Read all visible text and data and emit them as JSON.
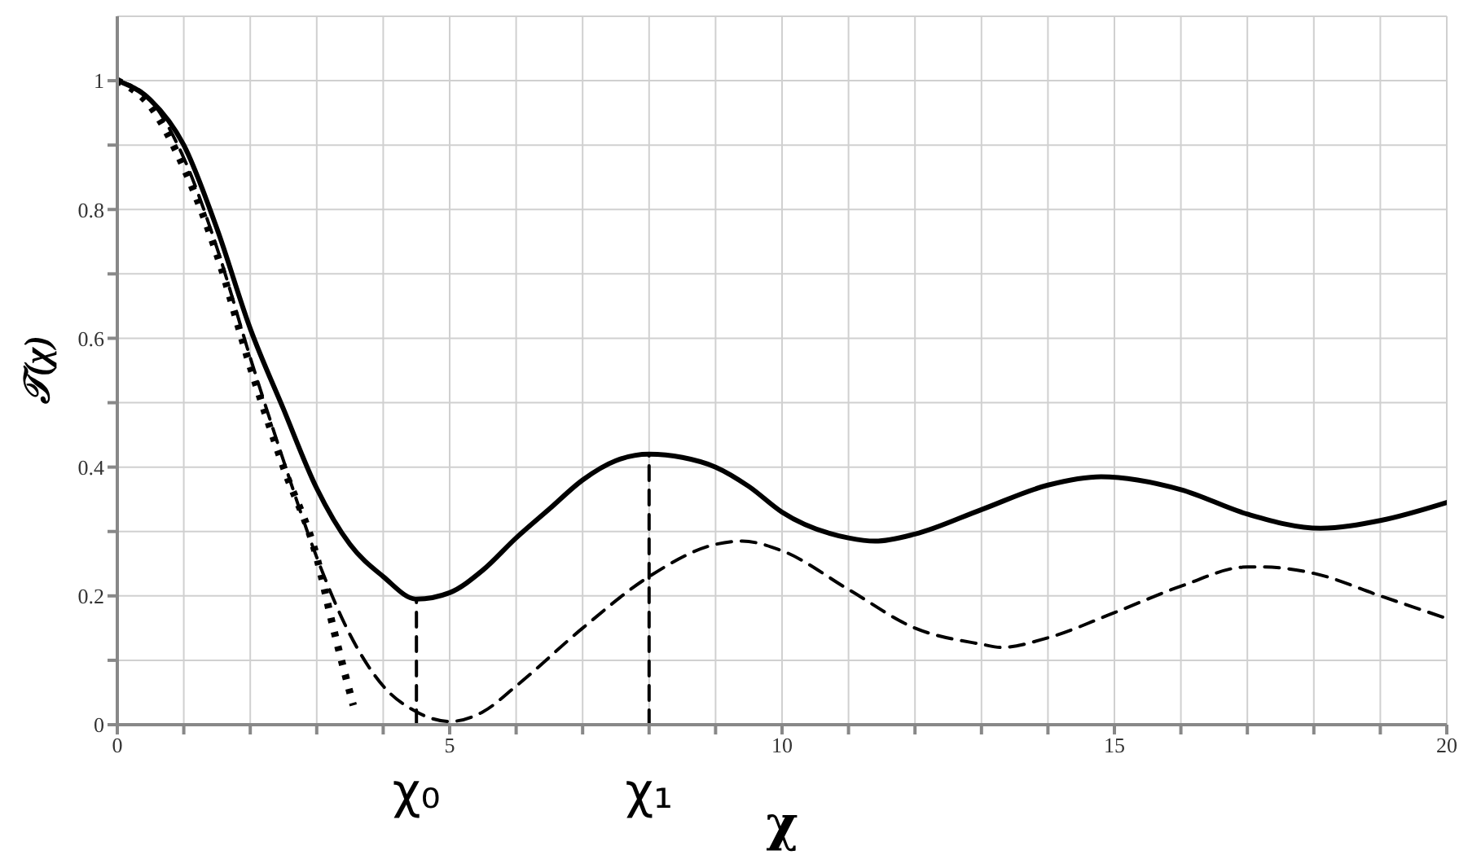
{
  "chart_data": {
    "type": "line",
    "xlabel": "χ",
    "ylabel": "𝒯(χ)",
    "xlim": [
      0,
      20
    ],
    "ylim": [
      0,
      1.1
    ],
    "xticks": [
      0,
      {
        "value": 1,
        "label": null
      },
      {
        "value": 2,
        "label": null
      },
      {
        "value": 3,
        "label": null
      },
      {
        "value": 4,
        "label": null
      },
      5,
      {
        "value": 6,
        "label": null
      },
      {
        "value": 7,
        "label": null
      },
      {
        "value": 8,
        "label": null
      },
      {
        "value": 9,
        "label": null
      },
      10,
      {
        "value": 11,
        "label": null
      },
      {
        "value": 12,
        "label": null
      },
      {
        "value": 13,
        "label": null
      },
      {
        "value": 14,
        "label": null
      },
      15,
      {
        "value": 16,
        "label": null
      },
      {
        "value": 17,
        "label": null
      },
      {
        "value": 18,
        "label": null
      },
      {
        "value": 19,
        "label": null
      },
      20
    ],
    "yticks": [
      0,
      {
        "value": 0.1,
        "label": null
      },
      0.2,
      {
        "value": 0.3,
        "label": null
      },
      0.4,
      {
        "value": 0.5,
        "label": null
      },
      0.6,
      {
        "value": 0.7,
        "label": null
      },
      0.8,
      {
        "value": 0.9,
        "label": null
      },
      1
    ],
    "grid": true,
    "marker": "none",
    "series": [
      {
        "color": "#000000",
        "line_style": "solid",
        "x": [
          0,
          0.5,
          1,
          1.5,
          2,
          2.5,
          3,
          3.5,
          4,
          4.5,
          5,
          5.5,
          6,
          6.5,
          7,
          7.5,
          8,
          8.5,
          9,
          9.5,
          10,
          11,
          11.4,
          12,
          13,
          14,
          14.8,
          16,
          17,
          18.1,
          19,
          20
        ],
        "values": [
          1,
          0.97,
          0.9,
          0.77,
          0.615,
          0.49,
          0.367,
          0.28,
          0.23,
          0.195,
          0.205,
          0.24,
          0.29,
          0.335,
          0.38,
          0.41,
          0.42,
          0.415,
          0.4,
          0.37,
          0.33,
          0.29,
          0.285,
          0.296,
          0.334,
          0.372,
          0.385,
          0.365,
          0.327,
          0.305,
          0.317,
          0.345
        ]
      },
      {
        "color": "#000000",
        "line_style": "dashed",
        "x": [
          0,
          0.5,
          1,
          1.5,
          2,
          2.5,
          3,
          3.5,
          4,
          4.5,
          5,
          5.5,
          6,
          7,
          8,
          9,
          9.4,
          10,
          11,
          12,
          13,
          13.3,
          14,
          15,
          16,
          17,
          17.2,
          18,
          19,
          20
        ],
        "values": [
          1,
          0.97,
          0.88,
          0.74,
          0.57,
          0.41,
          0.26,
          0.14,
          0.06,
          0.02,
          0.005,
          0.02,
          0.06,
          0.15,
          0.23,
          0.28,
          0.285,
          0.27,
          0.21,
          0.15,
          0.125,
          0.12,
          0.135,
          0.174,
          0.215,
          0.245,
          0.245,
          0.235,
          0.2,
          0.165
        ]
      },
      {
        "color": "#000000",
        "line_style": "dotted",
        "x": [
          0,
          0.5,
          1,
          1.5,
          2,
          2.5,
          3,
          3.25,
          3.55
        ],
        "values": [
          1,
          0.96,
          0.865,
          0.73,
          0.556,
          0.4,
          0.26,
          0.15,
          0.03
        ]
      },
      {
        "color": "#000000",
        "line_style": "dashed",
        "x": [
          4.5,
          4.5
        ],
        "values": [
          0,
          0.195
        ]
      },
      {
        "color": "#000000",
        "line_style": "dashed",
        "x": [
          8,
          8
        ],
        "values": [
          0,
          0.42
        ]
      }
    ],
    "annotations": [
      {
        "text": "χ₀",
        "x": 4.5,
        "y": 0
      },
      {
        "text": "χ₁",
        "x": 8,
        "y": 0
      }
    ]
  }
}
